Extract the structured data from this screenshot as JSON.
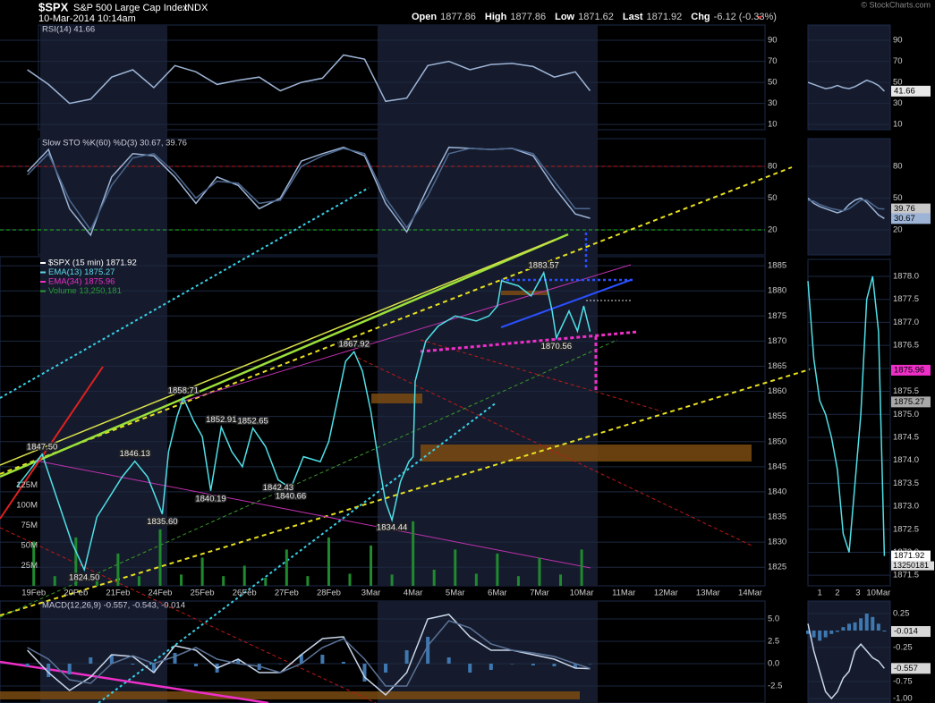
{
  "header": {
    "symbol": "$SPX",
    "name": "S&P 500 Large Cap Index",
    "exchange": "INDX",
    "datetime": "10-Mar-2014 10:14am",
    "quotes": [
      {
        "label": "Open",
        "value": "1877.86"
      },
      {
        "label": "High",
        "value": "1877.86"
      },
      {
        "label": "Low",
        "value": "1871.62"
      },
      {
        "label": "Last",
        "value": "1871.92"
      },
      {
        "label": "Chg",
        "value": "-6.12 (-0.33%)"
      }
    ],
    "credit": "© StockCharts.com"
  },
  "chart_data": [
    {
      "type": "line",
      "title": "RSI(14) 41.66",
      "x": [
        -0.15,
        0.35,
        0.85,
        1.35,
        1.85,
        2.35,
        2.85,
        3.35,
        3.85,
        4.35,
        4.85,
        5.35,
        5.85,
        6.35,
        6.85,
        7.35,
        7.85,
        8.35,
        8.85,
        9.35,
        9.85,
        10.35,
        10.85,
        11.35,
        11.85,
        12.35,
        12.85,
        13.2
      ],
      "xlim": [
        -0.8,
        17.35
      ],
      "ylim": [
        5,
        104.5
      ],
      "yticks": [
        90,
        70,
        50,
        30,
        10
      ],
      "series": [
        {
          "color": "#9db4d6",
          "values": [
            62,
            48,
            30,
            34,
            55,
            62,
            45,
            66,
            60,
            48,
            52,
            55,
            42,
            50,
            54,
            76,
            72,
            32,
            35,
            66,
            70,
            62,
            67,
            68,
            65,
            55,
            60,
            42
          ]
        }
      ]
    },
    {
      "type": "line",
      "title": "Slow STO %K(60) %D(3) 30.67, 39.76",
      "x": [
        -0.15,
        0.35,
        0.85,
        1.35,
        1.85,
        2.35,
        2.85,
        3.35,
        3.85,
        4.35,
        4.85,
        5.35,
        5.85,
        6.35,
        6.85,
        7.35,
        7.85,
        8.35,
        8.85,
        9.35,
        9.85,
        10.35,
        10.85,
        11.35,
        11.85,
        12.35,
        12.85,
        13.2
      ],
      "xlim": [
        -0.8,
        17.35
      ],
      "ylim": [
        -3.7,
        106.2
      ],
      "yticks": [
        80,
        50,
        20
      ],
      "ref_lines": [
        {
          "value": 80,
          "color": "#c0181c"
        },
        {
          "value": 20,
          "color": "#22bb22"
        }
      ],
      "series": [
        {
          "color": "#9db4d6",
          "values": [
            75,
            96,
            40,
            15,
            70,
            92,
            90,
            70,
            45,
            70,
            62,
            40,
            50,
            85,
            92,
            98,
            90,
            45,
            18,
            60,
            98,
            97,
            96,
            97,
            90,
            60,
            35,
            31
          ]
        },
        {
          "color": "#4c6790",
          "values": [
            72,
            92,
            48,
            20,
            62,
            88,
            92,
            74,
            50,
            66,
            64,
            45,
            48,
            80,
            90,
            97,
            92,
            50,
            22,
            52,
            92,
            97,
            96,
            97,
            92,
            66,
            40,
            40
          ]
        }
      ]
    },
    {
      "type": "line",
      "legend": [
        {
          "text": "$SPX (15 min) 1871.92",
          "color": "#ffffff"
        },
        {
          "text": "EMA(13) 1875.27",
          "color": "#5fd8e8"
        },
        {
          "text": "EMA(34) 1875.96",
          "color": "#ee2fc8"
        },
        {
          "text": "Volume 13,250,181",
          "color": "#2a9a3a"
        }
      ],
      "x": [
        -0.4,
        0.2,
        0.5,
        0.9,
        1.2,
        1.5,
        1.8,
        2.1,
        2.4,
        2.7,
        3.05,
        3.2,
        3.4,
        3.55,
        3.8,
        4.0,
        4.2,
        4.45,
        4.7,
        4.95,
        5.2,
        5.5,
        5.8,
        6.1,
        6.4,
        6.8,
        7.0,
        7.2,
        7.4,
        7.6,
        7.8,
        8.0,
        8.2,
        8.35,
        8.5,
        8.7,
        8.9,
        9.0,
        9.05,
        9.3,
        9.6,
        10.0,
        10.5,
        10.8,
        11.0,
        11.1,
        11.5,
        11.8,
        12.1,
        12.3,
        12.4,
        12.7,
        12.9,
        13.05,
        13.2
      ],
      "xlim": [
        -0.8,
        17.35
      ],
      "xticks": [
        {
          "value": 0,
          "label": "19Feb"
        },
        {
          "value": 1,
          "label": "20Feb"
        },
        {
          "value": 2,
          "label": "21Feb"
        },
        {
          "value": 3,
          "label": "24Feb"
        },
        {
          "value": 4,
          "label": "25Feb"
        },
        {
          "value": 5,
          "label": "26Feb"
        },
        {
          "value": 6,
          "label": "27Feb"
        },
        {
          "value": 7,
          "label": "28Feb"
        },
        {
          "value": 8,
          "label": "3Mar"
        },
        {
          "value": 9,
          "label": "4Mar"
        },
        {
          "value": 10,
          "label": "5Mar"
        },
        {
          "value": 11,
          "label": "6Mar"
        },
        {
          "value": 12,
          "label": "7Mar"
        },
        {
          "value": 13,
          "label": "10Mar"
        },
        {
          "value": 14,
          "label": "11Mar"
        },
        {
          "value": 15,
          "label": "12Mar"
        },
        {
          "value": 16,
          "label": "13Mar"
        },
        {
          "value": 17,
          "label": "14Mar"
        }
      ],
      "ylim": [
        1821.3,
        1886.8
      ],
      "yticks": [
        1885,
        1880,
        1875,
        1870,
        1865,
        1860,
        1855,
        1850,
        1845,
        1840,
        1835,
        1830,
        1825
      ],
      "series": [
        {
          "color": "#4fe0e8",
          "values": [
            1841,
            1847.5,
            1840,
            1830,
            1824.5,
            1835,
            1839,
            1843,
            1846.1,
            1843,
            1835.6,
            1848,
            1855,
            1858.7,
            1854,
            1851,
            1840.2,
            1852.9,
            1848,
            1845,
            1852.7,
            1849,
            1842.4,
            1840.7,
            1847,
            1846,
            1850,
            1858,
            1866,
            1867.9,
            1864,
            1856,
            1845,
            1838,
            1834.4,
            1842,
            1846,
            1847,
            1862,
            1870,
            1873,
            1875,
            1874,
            1875,
            1877,
            1882,
            1881,
            1879,
            1883.6,
            1876,
            1870.6,
            1876,
            1872,
            1877,
            1871.9
          ]
        }
      ],
      "annotations": [
        {
          "label": "1847.50",
          "x": 0.2,
          "y": 1847.5
        },
        {
          "label": "1824.50",
          "x": 1.2,
          "y": 1824.5
        },
        {
          "label": "1846.13",
          "x": 2.4,
          "y": 1846.13
        },
        {
          "label": "1835.60",
          "x": 3.05,
          "y": 1835.6
        },
        {
          "label": "1858.71",
          "x": 3.55,
          "y": 1858.71
        },
        {
          "label": "1840.19",
          "x": 4.2,
          "y": 1840.19
        },
        {
          "label": "1852.91",
          "x": 4.45,
          "y": 1852.91
        },
        {
          "label": "1852.65",
          "x": 5.2,
          "y": 1852.65
        },
        {
          "label": "1842.43",
          "x": 5.8,
          "y": 1842.43
        },
        {
          "label": "1840.66",
          "x": 6.1,
          "y": 1840.66
        },
        {
          "label": "1867.92",
          "x": 7.6,
          "y": 1867.92
        },
        {
          "label": "1834.44",
          "x": 8.5,
          "y": 1834.44
        },
        {
          "label": "1883.57",
          "x": 12.1,
          "y": 1883.57
        },
        {
          "label": "1870.56",
          "x": 12.4,
          "y": 1870.56
        }
      ],
      "volume": {
        "color": "#1f8a2e",
        "x": [
          0,
          0.5,
          1,
          1.5,
          2,
          2.5,
          3,
          3.5,
          4,
          4.5,
          5,
          5.5,
          6,
          6.5,
          7,
          7.5,
          8,
          8.5,
          9,
          9.5,
          10,
          10.5,
          11,
          11.5,
          12,
          12.5,
          13
        ],
        "values": [
          55000000,
          12000000,
          60000000,
          15000000,
          40000000,
          12000000,
          70000000,
          14000000,
          35000000,
          12000000,
          25000000,
          10000000,
          45000000,
          12000000,
          60000000,
          15000000,
          50000000,
          14000000,
          80000000,
          20000000,
          45000000,
          15000000,
          40000000,
          12000000,
          35000000,
          14000000,
          45000000
        ],
        "ylim": [
          0,
          408000000
        ],
        "yticks": [
          {
            "value": 125000000,
            "label": "125M"
          },
          {
            "value": 100000000,
            "label": "100M"
          },
          {
            "value": 75000000,
            "label": "75M"
          },
          {
            "value": 50000000,
            "label": "50M"
          },
          {
            "value": 25000000,
            "label": "25M"
          }
        ]
      }
    },
    {
      "type": "line",
      "title": "MACD(12,26,9) -0.557, -0.543, -0.014",
      "x": [
        -0.15,
        0.35,
        0.85,
        1.35,
        1.85,
        2.35,
        2.85,
        3.35,
        3.85,
        4.35,
        4.85,
        5.35,
        5.85,
        6.35,
        6.85,
        7.35,
        7.85,
        8.35,
        8.85,
        9.35,
        9.85,
        10.35,
        10.85,
        11.35,
        11.85,
        12.35,
        12.85,
        13.2
      ],
      "xlim": [
        -0.8,
        17.35
      ],
      "ylim": [
        -4.4,
        7
      ],
      "yticks": [
        {
          "value": 5,
          "label": "5.0"
        },
        2.5,
        {
          "value": 0,
          "label": "0.0"
        },
        -2.5
      ],
      "series": [
        {
          "style": "bar",
          "color": "#3f78b0",
          "values": [
            -0.3,
            -1.5,
            -1.2,
            0.7,
            1,
            -0.1,
            -1,
            1.2,
            -0.3,
            -1,
            0.5,
            -0.7,
            0,
            1,
            1,
            0.2,
            -2,
            -1,
            1.5,
            3,
            0.7,
            -1,
            -0.7,
            0,
            -0.2,
            -0.3,
            -0.5,
            -0.014
          ]
        },
        {
          "color": "#c8d6ea",
          "values": [
            1.5,
            -1,
            -3,
            -1.5,
            1,
            0.8,
            -1,
            2,
            1.5,
            -0.5,
            0.5,
            -1,
            -1,
            1,
            2.8,
            3,
            -1.5,
            -3.5,
            -1,
            5,
            5.5,
            3,
            1.5,
            1.5,
            1,
            0.5,
            -0.5,
            -0.557
          ]
        },
        {
          "color": "#5b7398",
          "values": [
            1.8,
            0.5,
            -1.8,
            -2.2,
            0,
            0.9,
            0,
            0.8,
            1.8,
            0.5,
            0,
            -0.3,
            -1,
            0,
            1.8,
            2.8,
            0.5,
            -2.5,
            -2.5,
            2,
            4.8,
            4,
            2.2,
            1.5,
            1.2,
            0.8,
            0,
            -0.543
          ]
        }
      ]
    },
    {
      "type": "line",
      "x": [
        0,
        1,
        2,
        3,
        4,
        5,
        6,
        7,
        8,
        9,
        10,
        11,
        12,
        13
      ],
      "xlim": [
        0,
        14
      ],
      "ylim": [
        5,
        104.5
      ],
      "yticks": [
        90,
        70,
        50,
        30,
        10
      ],
      "series": [
        {
          "color": "#9db4d6",
          "values": [
            50,
            48,
            46,
            44,
            45,
            47,
            45,
            44,
            46,
            49,
            52,
            50,
            47,
            41.66
          ]
        }
      ],
      "markers": [
        {
          "value": 41.66,
          "color": "#e8e8e8"
        }
      ]
    },
    {
      "type": "line",
      "x": [
        0,
        1,
        2,
        3,
        4,
        5,
        6,
        7,
        8,
        9,
        10,
        11,
        12,
        13
      ],
      "xlim": [
        0,
        14
      ],
      "ylim": [
        -3.7,
        106.2
      ],
      "yticks": [
        80,
        50,
        20
      ],
      "series": [
        {
          "color": "#9db4d6",
          "values": [
            50,
            45,
            42,
            40,
            38,
            36,
            38,
            44,
            48,
            50,
            46,
            40,
            34,
            30.67
          ]
        },
        {
          "color": "#4c6790",
          "values": [
            48,
            47,
            44,
            42,
            40,
            39,
            38,
            40,
            44,
            48,
            48,
            44,
            40,
            39.76
          ]
        }
      ],
      "markers": [
        {
          "value": 39.76,
          "color": "#c8c8c8"
        },
        {
          "value": 30.67,
          "color": "#9db4d6"
        }
      ]
    },
    {
      "type": "line",
      "x": [
        0,
        1,
        2,
        3,
        4,
        5,
        6,
        7,
        8,
        9,
        10,
        11,
        12,
        13
      ],
      "xlim": [
        0,
        14
      ],
      "xticks": [
        {
          "value": 2,
          "label": "1"
        },
        {
          "value": 5,
          "label": "2"
        },
        {
          "value": 8.5,
          "label": "3"
        },
        {
          "value": 12,
          "label": "10Mar"
        }
      ],
      "ylim": [
        1871.27,
        1878.37
      ],
      "yticks": [
        {
          "value": 1878,
          "label": "1878.0"
        },
        1877.5,
        {
          "value": 1877,
          "label": "1877.0"
        },
        1876.5,
        {
          "value": 1876,
          "label": "1876.0"
        },
        1875.5,
        {
          "value": 1875,
          "label": "1875.0"
        },
        1874.5,
        {
          "value": 1874,
          "label": "1874.0"
        },
        1873.5,
        {
          "value": 1873,
          "label": "1873.0"
        },
        1872.5,
        {
          "value": 1872,
          "label": "1872.0"
        },
        1871.5
      ],
      "series": [
        {
          "color": "#4fe0e8",
          "values": [
            1877.9,
            1876.2,
            1875.3,
            1875,
            1874.5,
            1873.8,
            1872.4,
            1872,
            1873.5,
            1875,
            1877.5,
            1878,
            1876.8,
            1871.92
          ]
        }
      ],
      "markers": [
        {
          "value": 1875.96,
          "color": "#ee2fc8"
        },
        {
          "value": 1875.27,
          "color": "#a8a8a8"
        },
        {
          "value": 1871.92,
          "color": "#ffffff"
        }
      ],
      "volume_label": 13250181
    },
    {
      "type": "line",
      "x": [
        0,
        1,
        2,
        3,
        4,
        5,
        6,
        7,
        8,
        9,
        10,
        11,
        12,
        13
      ],
      "xlim": [
        0,
        14
      ],
      "ylim": [
        -1.066,
        0.434
      ],
      "yticks": [
        0.25,
        -0.25,
        -0.75,
        {
          "value": -1,
          "label": "-1.00"
        }
      ],
      "series": [
        {
          "style": "bar",
          "color": "#3f78b0",
          "values": [
            -0.05,
            -0.1,
            -0.15,
            -0.1,
            -0.05,
            -0.02,
            0.05,
            0.1,
            0.12,
            0.18,
            0.25,
            0.2,
            0.1,
            -0.014
          ]
        },
        {
          "color": "#c8d6ea",
          "values": [
            0.1,
            -0.3,
            -0.6,
            -0.9,
            -1,
            -0.9,
            -0.7,
            -0.6,
            -0.3,
            -0.2,
            -0.3,
            -0.4,
            -0.45,
            -0.557
          ]
        }
      ],
      "markers": [
        {
          "value": -0.014,
          "color": "#d8d8d8"
        },
        {
          "value": -0.557,
          "color": "#d8d8d8"
        }
      ]
    }
  ]
}
